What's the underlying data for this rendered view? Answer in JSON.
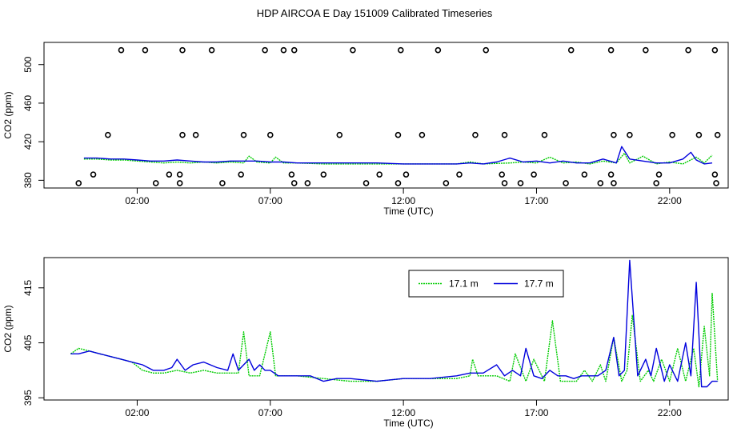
{
  "title": "HDP AIRCOA E  Day 151009  Calibrated Timeseries",
  "colors": {
    "series_171": "#00cc00",
    "series_177": "#0000dd",
    "axis": "#000000"
  },
  "chart_data": [
    {
      "type": "line",
      "xlabel": "Time (UTC)",
      "ylabel": "CO2 (ppm)",
      "xlim": [
        -1.5,
        24.2
      ],
      "ylim": [
        372,
        523
      ],
      "x_tick_labels": [
        "02:00",
        "07:00",
        "12:00",
        "17:00",
        "22:00"
      ],
      "x_ticks": [
        2,
        7,
        12,
        17,
        22
      ],
      "y_ticks": [
        380,
        420,
        460,
        500
      ],
      "y_tick_labels": [
        "380",
        "420",
        "460",
        "500"
      ],
      "series": [
        {
          "x": [
            0,
            0.5,
            1,
            1.5,
            2,
            2.5,
            3,
            3.5,
            4,
            4.5,
            5,
            5.5,
            6,
            6.2,
            6.5,
            7,
            7.2,
            7.5,
            8,
            9,
            10,
            11,
            12,
            13,
            14,
            14.5,
            15,
            16,
            16.5,
            17,
            17.5,
            18,
            18.5,
            19,
            19.5,
            20,
            20.3,
            20.5,
            21,
            21.5,
            22,
            22.5,
            23,
            23.3,
            23.6
          ],
          "y": [
            402,
            402,
            401,
            401,
            400,
            399,
            398,
            399,
            398,
            399,
            398,
            399,
            398,
            405,
            399,
            398,
            404,
            398,
            398,
            397,
            397,
            397,
            397,
            397,
            397,
            399,
            397,
            398,
            399,
            398,
            404,
            398,
            399,
            397,
            400,
            398,
            408,
            398,
            405,
            397,
            399,
            397,
            404,
            398,
            406
          ]
        },
        {
          "x": [
            0,
            0.5,
            1,
            1.5,
            2,
            2.5,
            3,
            3.5,
            4,
            4.5,
            5,
            5.5,
            6,
            6.5,
            7,
            7.5,
            8,
            9,
            10,
            11,
            12,
            13,
            14,
            14.5,
            15,
            15.5,
            16,
            16.5,
            17,
            17.5,
            18,
            18.5,
            19,
            19.5,
            20,
            20.2,
            20.5,
            21,
            21.5,
            22,
            22.5,
            22.8,
            23,
            23.3,
            23.6
          ],
          "y": [
            403,
            403,
            402,
            402,
            401,
            400,
            400,
            401,
            400,
            399,
            399,
            400,
            400,
            400,
            399,
            399,
            398,
            398,
            398,
            398,
            397,
            397,
            397,
            398,
            397,
            399,
            403,
            399,
            400,
            398,
            400,
            398,
            398,
            402,
            398,
            415,
            402,
            400,
            398,
            398,
            402,
            409,
            401,
            397,
            398
          ]
        }
      ],
      "points": {
        "x": [
          -0.2,
          0.35,
          0.9,
          1.4,
          2.3,
          2.7,
          3.2,
          3.6,
          3.6,
          3.7,
          3.7,
          4.2,
          4.8,
          5.2,
          5.9,
          6.0,
          6.8,
          7.0,
          7.5,
          7.8,
          7.9,
          7.9,
          8.4,
          9.0,
          9.6,
          10.1,
          10.6,
          11.1,
          11.8,
          11.8,
          11.9,
          12.1,
          12.7,
          13.3,
          13.6,
          14.1,
          14.7,
          15.1,
          15.7,
          15.8,
          15.8,
          16.4,
          16.9,
          17.3,
          18.3,
          18.1,
          18.8,
          19.4,
          19.8,
          19.8,
          19.9,
          19.9,
          20.5,
          21.1,
          21.5,
          21.6,
          22.1,
          22.7,
          23.1,
          23.7,
          23.7,
          23.75,
          23.8
        ],
        "y": [
          377,
          386,
          427,
          515,
          515,
          377,
          386,
          377,
          386,
          427,
          515,
          427,
          515,
          377,
          386,
          427,
          515,
          427,
          515,
          386,
          377,
          515,
          377,
          386,
          427,
          515,
          377,
          386,
          377,
          427,
          515,
          386,
          427,
          515,
          377,
          386,
          427,
          515,
          386,
          377,
          427,
          377,
          386,
          427,
          515,
          377,
          386,
          377,
          515,
          386,
          427,
          377,
          427,
          515,
          377,
          386,
          427,
          515,
          427,
          386,
          515,
          377,
          427
        ]
      }
    },
    {
      "type": "line",
      "xlabel": "Time (UTC)",
      "ylabel": "CO2 (ppm)",
      "xlim": [
        -1.5,
        24.2
      ],
      "ylim": [
        394.6,
        420.5
      ],
      "x_tick_labels": [
        "02:00",
        "07:00",
        "12:00",
        "17:00",
        "22:00"
      ],
      "x_ticks": [
        2,
        7,
        12,
        17,
        22
      ],
      "y_ticks": [
        395,
        405,
        415
      ],
      "y_tick_labels": [
        "395",
        "405",
        "415"
      ],
      "legend": {
        "placement": "top-right",
        "entries": [
          "17.1 m",
          "17.7 m"
        ]
      },
      "series": [
        {
          "name": "17.1 m",
          "x": [
            -0.5,
            -0.2,
            0.2,
            0.6,
            1.0,
            1.4,
            1.8,
            2.2,
            2.6,
            3.0,
            3.5,
            4.0,
            4.5,
            5.0,
            5.5,
            5.8,
            6.0,
            6.2,
            6.6,
            6.9,
            7.0,
            7.2,
            7.6,
            8.0,
            9.0,
            10.0,
            11.0,
            12.0,
            13.0,
            14.0,
            14.5,
            14.6,
            14.8,
            15.0,
            15.5,
            16.0,
            16.2,
            16.6,
            16.9,
            17.3,
            17.6,
            17.9,
            18.2,
            18.5,
            18.8,
            19.1,
            19.4,
            19.6,
            19.9,
            20.2,
            20.4,
            20.6,
            20.9,
            21.2,
            21.4,
            21.7,
            22.0,
            22.3,
            22.6,
            22.9,
            23.1,
            23.3,
            23.5,
            23.6,
            23.8
          ],
          "y": [
            403,
            404,
            403.5,
            403,
            402.5,
            402,
            401.5,
            400,
            399.5,
            399.5,
            400,
            399.5,
            400,
            399.5,
            399.5,
            399.5,
            407,
            399,
            399,
            405,
            407,
            399,
            399,
            399,
            398.5,
            398,
            398,
            398.5,
            398.5,
            398.5,
            399,
            402,
            399,
            399,
            399,
            398,
            403,
            398,
            402,
            398,
            409,
            398,
            398,
            398,
            400,
            398,
            401,
            398,
            406,
            398,
            400,
            410,
            398,
            400,
            398,
            402,
            398,
            404,
            398,
            404,
            397,
            408,
            399,
            414,
            398
          ]
        },
        {
          "name": "17.7 m",
          "x": [
            -0.5,
            -0.2,
            0.2,
            0.6,
            1.0,
            1.4,
            1.8,
            2.2,
            2.6,
            3.0,
            3.3,
            3.5,
            3.8,
            4.1,
            4.5,
            5.0,
            5.4,
            5.6,
            5.8,
            6.0,
            6.2,
            6.4,
            6.6,
            6.8,
            7.0,
            7.3,
            7.6,
            8.0,
            8.5,
            9.0,
            9.5,
            10.0,
            11.0,
            12.0,
            12.5,
            13.0,
            14.0,
            14.5,
            15.0,
            15.5,
            15.8,
            16.1,
            16.4,
            16.6,
            16.9,
            17.2,
            17.5,
            17.8,
            18.1,
            18.4,
            18.7,
            19.0,
            19.3,
            19.6,
            19.9,
            20.1,
            20.3,
            20.5,
            20.8,
            21.1,
            21.3,
            21.5,
            21.8,
            22.0,
            22.3,
            22.6,
            22.8,
            23.0,
            23.2,
            23.4,
            23.6,
            23.8
          ],
          "y": [
            403,
            403,
            403.5,
            403,
            402.5,
            402,
            401.5,
            401,
            400,
            400,
            400.5,
            402,
            400,
            401,
            401.5,
            400.5,
            400,
            403,
            400,
            401,
            402,
            400,
            401,
            400,
            400,
            399,
            399,
            399,
            399,
            398,
            398.5,
            398.5,
            398,
            398.5,
            398.5,
            398.5,
            399,
            399.5,
            399.5,
            401,
            399,
            400,
            399,
            404,
            399,
            398.5,
            400,
            399,
            399,
            398.5,
            399,
            399,
            399,
            400,
            406,
            399,
            400,
            420,
            399,
            402,
            399,
            404,
            398,
            401,
            398,
            405,
            399,
            416,
            397,
            397,
            398,
            398
          ]
        }
      ]
    }
  ]
}
